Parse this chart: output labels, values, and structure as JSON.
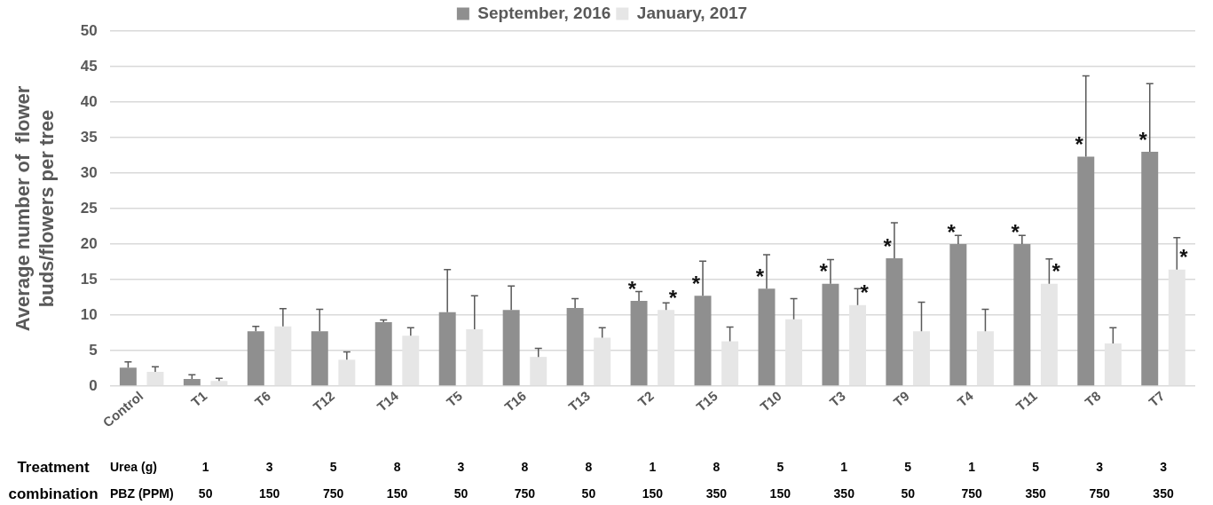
{
  "chart_data": {
    "type": "bar",
    "ylabel": "Average number of  flower buds/flowers per tree",
    "categories": [
      "Control",
      "T1",
      "T6",
      "T12",
      "T14",
      "T5",
      "T16",
      "T13",
      "T2",
      "T15",
      "T10",
      "T3",
      "T9",
      "T4",
      "T11",
      "T8",
      "T7"
    ],
    "series": [
      {
        "name": "September, 2016",
        "color": "#8f8f8f",
        "values": [
          2.6,
          1.0,
          7.7,
          7.7,
          9.0,
          10.4,
          10.7,
          11.0,
          12.0,
          12.7,
          13.7,
          14.4,
          18.0,
          20.0,
          20.0,
          32.3,
          33.0
        ],
        "errors": [
          [
            2.6,
            3.4
          ],
          [
            1.0,
            1.6
          ],
          [
            7.7,
            8.4
          ],
          [
            7.7,
            10.8
          ],
          [
            9.0,
            9.3
          ],
          [
            10.4,
            16.4
          ],
          [
            10.7,
            14.1
          ],
          [
            11.0,
            12.3
          ],
          [
            12.0,
            13.3
          ],
          [
            12.7,
            17.6
          ],
          [
            13.7,
            18.5
          ],
          [
            14.4,
            17.8
          ],
          [
            18.0,
            23.0
          ],
          [
            20.0,
            21.2
          ],
          [
            20.0,
            21.2
          ],
          [
            32.3,
            43.7
          ],
          [
            33.0,
            42.6
          ]
        ],
        "value_labels": [
          null,
          null,
          null,
          null,
          null,
          null,
          null,
          null,
          "*",
          "*",
          "*",
          "*",
          "*",
          "*",
          "*",
          "*",
          "*"
        ]
      },
      {
        "name": "January, 2017",
        "color": "#e6e6e6",
        "values": [
          2.0,
          0.7,
          8.4,
          3.7,
          7.1,
          8.0,
          4.1,
          6.8,
          10.7,
          6.3,
          9.4,
          11.4,
          7.7,
          7.7,
          14.4,
          6.0,
          16.4
        ],
        "errors": [
          [
            2.0,
            2.7
          ],
          [
            0.7,
            1.1
          ],
          [
            8.4,
            10.9
          ],
          [
            3.7,
            4.8
          ],
          [
            7.1,
            8.2
          ],
          [
            8.0,
            12.7
          ],
          [
            4.1,
            5.3
          ],
          [
            6.8,
            8.2
          ],
          [
            10.7,
            11.7
          ],
          [
            6.3,
            8.3
          ],
          [
            9.4,
            12.3
          ],
          [
            11.4,
            13.7
          ],
          [
            7.7,
            11.8
          ],
          [
            7.7,
            10.8
          ],
          [
            14.4,
            17.9
          ],
          [
            6.0,
            8.2
          ],
          [
            16.4,
            20.9
          ]
        ],
        "value_labels": [
          null,
          null,
          null,
          null,
          null,
          null,
          null,
          null,
          "*",
          null,
          null,
          "*",
          null,
          null,
          "*",
          null,
          "*"
        ]
      }
    ],
    "ylim": [
      0,
      50
    ],
    "yticks": [
      0,
      5,
      10,
      15,
      20,
      25,
      30,
      35,
      40,
      45,
      50
    ],
    "grid": "y",
    "legend": "top",
    "annotations": [
      "Treatment combination",
      "Urea (g)",
      "PBZ (PPM)",
      "1",
      "3",
      "5",
      "8",
      "3",
      "8",
      "8",
      "1",
      "8",
      "5",
      "1",
      "5",
      "1",
      "5",
      "3",
      "3",
      "50",
      "150",
      "750",
      "150",
      "50",
      "750",
      "50",
      "150",
      "350",
      "150",
      "350",
      "50",
      "750",
      "350",
      "750",
      "350"
    ]
  }
}
